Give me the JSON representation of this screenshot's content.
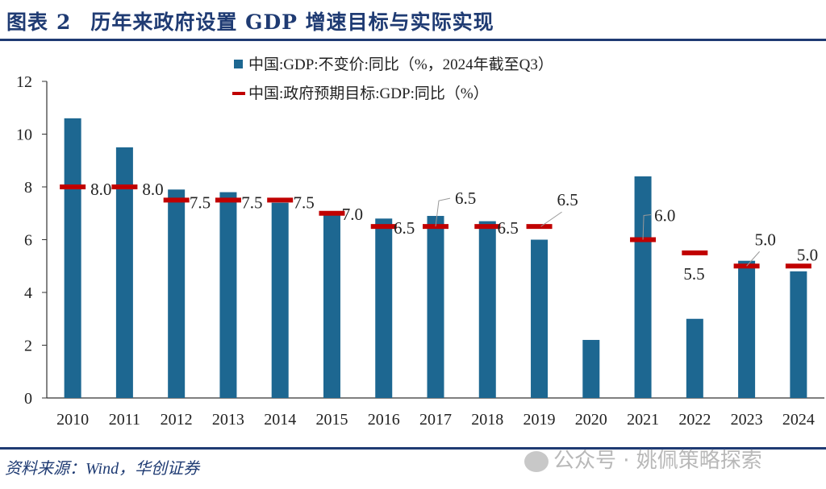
{
  "header": {
    "figure_label": "图表",
    "figure_number": "2",
    "title": "历年来政府设置 GDP 增速目标与实际实现"
  },
  "footer": {
    "source": "资料来源：Wind，华创证券",
    "watermark": "公众号 · 姚佩策略探索"
  },
  "colors": {
    "bar": "#1d6791",
    "target": "#c00000",
    "title": "#1f3b73"
  },
  "chart_data": {
    "type": "bar",
    "title": "历年来政府设置 GDP 增速目标与实际实现",
    "xlabel": "",
    "ylabel": "",
    "ylim": [
      0,
      12
    ],
    "yticks": [
      0,
      2,
      4,
      6,
      8,
      10,
      12
    ],
    "grid": false,
    "legend_position": "top-center",
    "categories": [
      "2010",
      "2011",
      "2012",
      "2013",
      "2014",
      "2015",
      "2016",
      "2017",
      "2018",
      "2019",
      "2020",
      "2021",
      "2022",
      "2023",
      "2024"
    ],
    "series": [
      {
        "name": "中国:GDP:不变价:同比（%，2024年截至Q3）",
        "type": "bar",
        "values": [
          10.6,
          9.5,
          7.9,
          7.8,
          7.4,
          7.0,
          6.8,
          6.9,
          6.7,
          6.0,
          2.2,
          8.4,
          3.0,
          5.2,
          4.8
        ]
      },
      {
        "name": "中国:政府预期目标:GDP:同比（%）",
        "type": "marker",
        "values": [
          8.0,
          8.0,
          7.5,
          7.5,
          7.5,
          7.0,
          6.5,
          6.5,
          6.5,
          6.5,
          null,
          6.0,
          5.5,
          5.0,
          5.0
        ],
        "labels": [
          "8.0",
          "8.0",
          "7.5",
          "7.5",
          "7.5",
          "7.0",
          "6.5",
          "6.5",
          "6.5",
          "6.5",
          "",
          "6.0",
          "5.5",
          "5.0",
          "5.0"
        ]
      }
    ]
  }
}
